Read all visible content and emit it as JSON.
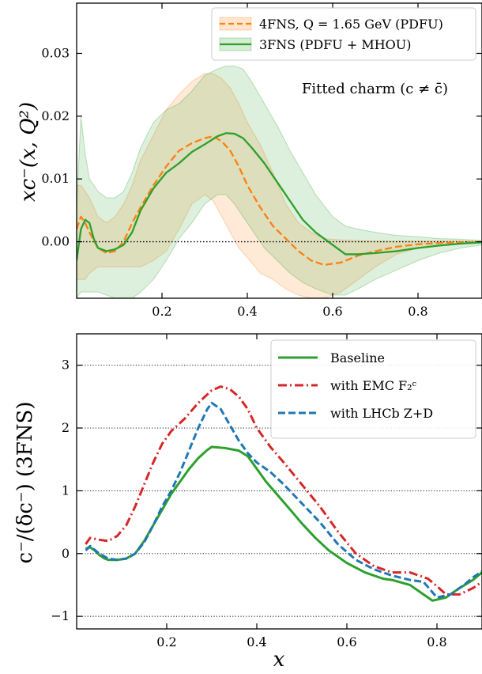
{
  "chart_data": [
    {
      "type": "line",
      "title": "",
      "ylabel": "xc⁻(x, Q²)",
      "xlabel": "",
      "xlim": [
        0.0,
        0.95
      ],
      "ylim": [
        -0.009,
        0.038
      ],
      "xticks": [
        0.2,
        0.4,
        0.6,
        0.8
      ],
      "xtick_labels": [
        "0.2",
        "0.4",
        "0.6",
        "0.8"
      ],
      "yticks": [
        0.0,
        0.01,
        0.02,
        0.03
      ],
      "ytick_labels": [
        "0.00",
        "0.01",
        "0.02",
        "0.03"
      ],
      "annotation": "Fitted charm (c ≠ c̄)",
      "legend_position": "top-right",
      "zero_line": "dotted",
      "series": [
        {
          "name": "4FNS, Q = 1.65 GeV (PDFU)",
          "color": "#ff7f0e",
          "dash": "dashed",
          "band": true,
          "x": [
            0.0,
            0.01,
            0.02,
            0.03,
            0.05,
            0.07,
            0.09,
            0.11,
            0.13,
            0.15,
            0.18,
            0.21,
            0.24,
            0.27,
            0.3,
            0.32,
            0.34,
            0.36,
            0.38,
            0.4,
            0.43,
            0.46,
            0.49,
            0.52,
            0.55,
            0.58,
            0.62,
            0.66,
            0.7,
            0.75,
            0.8,
            0.85,
            0.9,
            0.95
          ],
          "values": [
            0.002,
            0.004,
            0.003,
            0.0015,
            -0.001,
            -0.0018,
            -0.0015,
            0.0,
            0.003,
            0.0055,
            0.009,
            0.012,
            0.0145,
            0.0157,
            0.0165,
            0.0168,
            0.016,
            0.0145,
            0.012,
            0.009,
            0.0055,
            0.0025,
            0.0005,
            -0.0015,
            -0.003,
            -0.0037,
            -0.0033,
            -0.0022,
            -0.0015,
            -0.0008,
            -0.0004,
            -0.0002,
            -0.0001,
            -0.0001
          ],
          "lower": [
            -0.006,
            -0.006,
            -0.006,
            -0.005,
            -0.004,
            -0.004,
            -0.004,
            -0.004,
            -0.004,
            -0.004,
            -0.003,
            -0.0015,
            0.002,
            0.006,
            0.0075,
            0.0065,
            0.004,
            0.0015,
            -0.001,
            -0.0025,
            -0.005,
            -0.006,
            -0.0075,
            -0.0085,
            -0.009,
            -0.009,
            -0.008,
            -0.006,
            -0.004,
            -0.002,
            -0.001,
            -0.0005,
            -0.0003,
            -0.0002
          ],
          "upper": [
            0.009,
            0.009,
            0.008,
            0.007,
            0.004,
            0.003,
            0.004,
            0.006,
            0.009,
            0.013,
            0.017,
            0.021,
            0.0235,
            0.0255,
            0.0268,
            0.0268,
            0.026,
            0.0245,
            0.022,
            0.019,
            0.0155,
            0.011,
            0.006,
            0.003,
            0.0015,
            0.0005,
            0.0003,
            0.0002,
            0.0001,
            0.0001,
            0.0001,
            0.0001,
            0.0001,
            0.0001
          ]
        },
        {
          "name": "3FNS (PDFU + MHOU)",
          "color": "#2ca02c",
          "dash": "solid",
          "band": true,
          "x": [
            0.0,
            0.01,
            0.02,
            0.03,
            0.04,
            0.05,
            0.07,
            0.09,
            0.11,
            0.13,
            0.15,
            0.18,
            0.21,
            0.24,
            0.27,
            0.3,
            0.33,
            0.35,
            0.37,
            0.39,
            0.41,
            0.44,
            0.47,
            0.5,
            0.53,
            0.56,
            0.6,
            0.63,
            0.66,
            0.7,
            0.75,
            0.8,
            0.85,
            0.9,
            0.95
          ],
          "values": [
            -0.003,
            0.002,
            0.0035,
            0.003,
            0.0005,
            -0.001,
            -0.0015,
            -0.0012,
            -0.0005,
            0.0015,
            0.005,
            0.0085,
            0.011,
            0.0125,
            0.0143,
            0.0155,
            0.0168,
            0.0173,
            0.0172,
            0.0165,
            0.015,
            0.0125,
            0.0095,
            0.0065,
            0.0035,
            0.0015,
            -0.0005,
            -0.002,
            -0.002,
            -0.0018,
            -0.0015,
            -0.001,
            -0.0006,
            -0.0003,
            -0.0001
          ],
          "lower": [
            -0.009,
            -0.008,
            -0.008,
            -0.008,
            -0.008,
            -0.008,
            -0.0085,
            -0.009,
            -0.009,
            -0.009,
            -0.008,
            -0.006,
            -0.003,
            0.0005,
            0.003,
            0.006,
            0.0075,
            0.0075,
            0.006,
            0.004,
            0.002,
            -0.001,
            -0.003,
            -0.005,
            -0.0065,
            -0.0075,
            -0.0085,
            -0.0085,
            -0.0075,
            -0.006,
            -0.0045,
            -0.003,
            -0.0018,
            -0.001,
            -0.0005
          ],
          "upper": [
            0.0055,
            0.02,
            0.014,
            0.01,
            0.009,
            0.008,
            0.007,
            0.007,
            0.008,
            0.011,
            0.015,
            0.019,
            0.021,
            0.022,
            0.024,
            0.0265,
            0.0275,
            0.028,
            0.028,
            0.0275,
            0.0255,
            0.022,
            0.0185,
            0.0145,
            0.011,
            0.0075,
            0.004,
            0.0025,
            0.002,
            0.0015,
            0.001,
            0.0008,
            0.0005,
            0.0004,
            0.0002
          ]
        }
      ]
    },
    {
      "type": "line",
      "title": "",
      "ylabel": "c⁻/(δc⁻) (3FNS)",
      "xlabel": "x",
      "xlim": [
        0.0,
        0.9
      ],
      "ylim": [
        -1.2,
        3.5
      ],
      "xticks": [
        0.2,
        0.4,
        0.6,
        0.8
      ],
      "xtick_labels": [
        "0.2",
        "0.4",
        "0.6",
        "0.8"
      ],
      "yticks": [
        -1,
        0,
        1,
        2,
        3
      ],
      "ytick_labels": [
        "−1",
        "0",
        "1",
        "2",
        "3"
      ],
      "grid_y": "dotted",
      "legend_position": "top-right",
      "series": [
        {
          "name": "Baseline",
          "color": "#2ca02c",
          "dash": "solid",
          "x": [
            0.02,
            0.03,
            0.04,
            0.05,
            0.06,
            0.07,
            0.09,
            0.11,
            0.13,
            0.15,
            0.17,
            0.19,
            0.21,
            0.23,
            0.25,
            0.27,
            0.29,
            0.3,
            0.33,
            0.36,
            0.38,
            0.4,
            0.42,
            0.45,
            0.48,
            0.5,
            0.53,
            0.56,
            0.6,
            0.64,
            0.68,
            0.7,
            0.74,
            0.77,
            0.79,
            0.82,
            0.85,
            0.88,
            0.9
          ],
          "values": [
            0.08,
            0.1,
            0.05,
            -0.02,
            -0.07,
            -0.1,
            -0.1,
            -0.08,
            0.0,
            0.2,
            0.45,
            0.7,
            0.95,
            1.15,
            1.35,
            1.52,
            1.65,
            1.7,
            1.68,
            1.64,
            1.55,
            1.35,
            1.15,
            0.9,
            0.65,
            0.48,
            0.25,
            0.05,
            -0.15,
            -0.3,
            -0.4,
            -0.42,
            -0.5,
            -0.65,
            -0.75,
            -0.7,
            -0.55,
            -0.42,
            -0.3
          ]
        },
        {
          "name": "with EMC F₂ᶜ",
          "color": "#d62728",
          "dash": "dashdot",
          "x": [
            0.02,
            0.03,
            0.05,
            0.07,
            0.09,
            0.11,
            0.13,
            0.15,
            0.17,
            0.19,
            0.21,
            0.24,
            0.27,
            0.3,
            0.32,
            0.34,
            0.36,
            0.38,
            0.4,
            0.43,
            0.46,
            0.5,
            0.54,
            0.58,
            0.62,
            0.66,
            0.7,
            0.74,
            0.78,
            0.8,
            0.82,
            0.85,
            0.88,
            0.9
          ],
          "values": [
            0.15,
            0.25,
            0.22,
            0.2,
            0.28,
            0.45,
            0.75,
            1.1,
            1.45,
            1.75,
            1.95,
            2.15,
            2.4,
            2.6,
            2.66,
            2.62,
            2.5,
            2.3,
            2.0,
            1.7,
            1.45,
            1.1,
            0.75,
            0.35,
            0.0,
            -0.2,
            -0.3,
            -0.3,
            -0.4,
            -0.52,
            -0.65,
            -0.65,
            -0.55,
            -0.45
          ]
        },
        {
          "name": "with LHCb Z+D",
          "color": "#1f77b4",
          "dash": "dashed",
          "x": [
            0.02,
            0.03,
            0.05,
            0.07,
            0.09,
            0.11,
            0.13,
            0.15,
            0.17,
            0.19,
            0.21,
            0.23,
            0.25,
            0.27,
            0.29,
            0.3,
            0.32,
            0.34,
            0.36,
            0.38,
            0.4,
            0.43,
            0.46,
            0.5,
            0.54,
            0.58,
            0.62,
            0.66,
            0.7,
            0.74,
            0.77,
            0.8,
            0.83,
            0.86,
            0.88,
            0.9
          ],
          "values": [
            0.05,
            0.12,
            0.0,
            -0.08,
            -0.1,
            -0.08,
            0.0,
            0.18,
            0.45,
            0.75,
            1.0,
            1.3,
            1.65,
            2.0,
            2.3,
            2.4,
            2.3,
            2.05,
            1.8,
            1.6,
            1.45,
            1.3,
            1.1,
            0.8,
            0.5,
            0.15,
            -0.1,
            -0.25,
            -0.35,
            -0.42,
            -0.45,
            -0.7,
            -0.65,
            -0.5,
            -0.38,
            -0.28
          ]
        }
      ]
    }
  ]
}
